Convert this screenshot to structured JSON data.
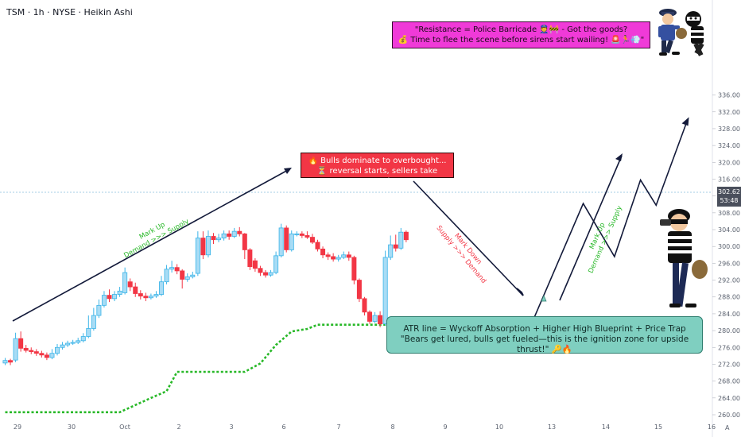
{
  "header": {
    "ticker": "TSM · 1h · NYSE · Heikin Ashi"
  },
  "price_tag": {
    "price": "302.62",
    "countdown": "53:48"
  },
  "callouts": {
    "resistance": {
      "line1": "\"Resistance = Police Barricade 👮🚧 - Got the goods?",
      "line2": "💰 Time to flee the scene before sirens start wailing! 🚨🏃💨\""
    },
    "bulls": {
      "line1": "🔥 Bulls dominate to overbought...",
      "line2": "⏳ reversal starts, sellers take control."
    },
    "atr": {
      "line1": "ATR line = Wyckoff Absorption + Higher High Blueprint + Price Trap",
      "line2": "\"Bears get lured, bulls get fueled—this is the ignition zone for upside thrust!\" 🔑🔥"
    }
  },
  "annotations": {
    "markup1": {
      "l1": "Mark Up",
      "l2": "Demand >>> Supply"
    },
    "markdown": {
      "l1": "Mark Down",
      "l2": "Supply >>> Demand"
    },
    "markup2": {
      "l1": "Mark Up",
      "l2": "Demand >>> Supply"
    }
  },
  "colors": {
    "up": "#3ab4e8",
    "up_fill": "#a8dcf5",
    "down": "#f23645",
    "atr": "#27b827",
    "arrow": "#131a3a",
    "callout_magenta": "#f03ad8",
    "callout_red": "#f23645",
    "callout_teal": "#7fcfc0"
  },
  "chart_data": {
    "type": "candlestick",
    "style": "Heikin Ashi",
    "ylim": [
      260,
      338
    ],
    "y_ticks": [
      260,
      264,
      268,
      272,
      276,
      280,
      284,
      288,
      292,
      296,
      300,
      304,
      308,
      312,
      316,
      320,
      324,
      328,
      332,
      336
    ],
    "y_tick_labels": [
      "260.00",
      "264.00",
      "268.00",
      "272.00",
      "276.00",
      "280.00",
      "284.00",
      "288.00",
      "292.00",
      "296.00",
      "300.00",
      "304.00",
      "308.00",
      "312.00",
      "316.00",
      "320.00",
      "324.00",
      "328.00",
      "332.00",
      "336.00"
    ],
    "x_labels": [
      "29",
      "30",
      "Oct",
      "2",
      "3",
      "6",
      "7",
      "8",
      "9",
      "10",
      "13",
      "14",
      "15",
      "16"
    ],
    "candles": [
      {
        "o": 272.3,
        "c": 272.9,
        "h": 273.5,
        "l": 271.8
      },
      {
        "o": 272.9,
        "c": 272.5,
        "h": 273.3,
        "l": 271.8
      },
      {
        "o": 273.0,
        "c": 278.1,
        "h": 279.5,
        "l": 272.5
      },
      {
        "o": 278.1,
        "c": 275.8,
        "h": 279.8,
        "l": 275.0
      },
      {
        "o": 275.8,
        "c": 275.3,
        "h": 276.6,
        "l": 274.8
      },
      {
        "o": 275.3,
        "c": 275.0,
        "h": 276.0,
        "l": 274.4
      },
      {
        "o": 275.0,
        "c": 274.6,
        "h": 275.6,
        "l": 274.0
      },
      {
        "o": 274.6,
        "c": 274.2,
        "h": 275.2,
        "l": 273.6
      },
      {
        "o": 274.2,
        "c": 273.6,
        "h": 274.8,
        "l": 273.0
      },
      {
        "o": 273.6,
        "c": 274.6,
        "h": 275.6,
        "l": 273.2
      },
      {
        "o": 274.6,
        "c": 276.0,
        "h": 276.8,
        "l": 274.1
      },
      {
        "o": 276.0,
        "c": 276.6,
        "h": 277.3,
        "l": 275.5
      },
      {
        "o": 276.6,
        "c": 277.0,
        "h": 277.6,
        "l": 276.1
      },
      {
        "o": 277.0,
        "c": 277.2,
        "h": 277.8,
        "l": 276.6
      },
      {
        "o": 277.2,
        "c": 277.6,
        "h": 278.3,
        "l": 276.8
      },
      {
        "o": 277.6,
        "c": 278.6,
        "h": 279.4,
        "l": 277.2
      },
      {
        "o": 278.6,
        "c": 280.5,
        "h": 283.6,
        "l": 278.2
      },
      {
        "o": 280.5,
        "c": 283.6,
        "h": 285.4,
        "l": 280.0
      },
      {
        "o": 283.6,
        "c": 286.0,
        "h": 287.4,
        "l": 283.0
      },
      {
        "o": 286.0,
        "c": 288.4,
        "h": 289.4,
        "l": 285.5
      },
      {
        "o": 288.4,
        "c": 287.6,
        "h": 289.8,
        "l": 286.8
      },
      {
        "o": 287.6,
        "c": 288.6,
        "h": 289.4,
        "l": 287.0
      },
      {
        "o": 288.6,
        "c": 289.4,
        "h": 290.4,
        "l": 288.0
      },
      {
        "o": 289.0,
        "c": 293.8,
        "h": 295.0,
        "l": 288.6
      },
      {
        "o": 291.6,
        "c": 290.4,
        "h": 292.4,
        "l": 289.4
      },
      {
        "o": 290.4,
        "c": 288.8,
        "h": 291.4,
        "l": 288.0
      },
      {
        "o": 288.8,
        "c": 288.2,
        "h": 289.6,
        "l": 287.4
      },
      {
        "o": 288.2,
        "c": 287.8,
        "h": 289.0,
        "l": 287.0
      },
      {
        "o": 287.8,
        "c": 288.2,
        "h": 288.8,
        "l": 287.4
      },
      {
        "o": 288.2,
        "c": 288.6,
        "h": 289.4,
        "l": 287.8
      },
      {
        "o": 288.6,
        "c": 291.6,
        "h": 293.0,
        "l": 288.2
      },
      {
        "o": 291.6,
        "c": 294.6,
        "h": 295.6,
        "l": 291.0
      },
      {
        "o": 294.6,
        "c": 295.0,
        "h": 296.6,
        "l": 293.8
      },
      {
        "o": 295.0,
        "c": 294.2,
        "h": 295.8,
        "l": 293.4
      },
      {
        "o": 294.2,
        "c": 292.2,
        "h": 294.6,
        "l": 290.0
      },
      {
        "o": 292.2,
        "c": 292.8,
        "h": 293.6,
        "l": 291.6
      },
      {
        "o": 292.8,
        "c": 293.2,
        "h": 294.0,
        "l": 292.4
      },
      {
        "o": 293.6,
        "c": 302.0,
        "h": 303.6,
        "l": 293.0
      },
      {
        "o": 302.0,
        "c": 298.0,
        "h": 303.6,
        "l": 297.0
      },
      {
        "o": 298.0,
        "c": 302.4,
        "h": 303.8,
        "l": 297.4
      },
      {
        "o": 302.4,
        "c": 301.6,
        "h": 303.2,
        "l": 300.6
      },
      {
        "o": 301.6,
        "c": 302.0,
        "h": 303.0,
        "l": 301.0
      },
      {
        "o": 302.0,
        "c": 303.0,
        "h": 303.8,
        "l": 301.4
      },
      {
        "o": 303.0,
        "c": 302.4,
        "h": 303.8,
        "l": 301.6
      },
      {
        "o": 302.4,
        "c": 303.6,
        "h": 304.4,
        "l": 302.0
      },
      {
        "o": 303.6,
        "c": 303.0,
        "h": 304.6,
        "l": 302.4
      },
      {
        "o": 303.0,
        "c": 299.2,
        "h": 303.2,
        "l": 297.0
      },
      {
        "o": 299.2,
        "c": 295.2,
        "h": 299.6,
        "l": 294.4
      },
      {
        "o": 296.6,
        "c": 294.8,
        "h": 297.2,
        "l": 294.0
      },
      {
        "o": 294.8,
        "c": 293.8,
        "h": 295.4,
        "l": 293.0
      },
      {
        "o": 293.8,
        "c": 293.2,
        "h": 294.4,
        "l": 292.6
      },
      {
        "o": 293.2,
        "c": 293.8,
        "h": 294.4,
        "l": 292.8
      },
      {
        "o": 293.8,
        "c": 297.8,
        "h": 298.8,
        "l": 293.4
      },
      {
        "o": 297.8,
        "c": 304.4,
        "h": 305.4,
        "l": 297.4
      },
      {
        "o": 304.4,
        "c": 299.2,
        "h": 305.0,
        "l": 298.6
      },
      {
        "o": 299.2,
        "c": 303.0,
        "h": 303.8,
        "l": 298.8
      },
      {
        "o": 303.0,
        "c": 303.0,
        "h": 303.6,
        "l": 302.4
      },
      {
        "o": 303.0,
        "c": 302.6,
        "h": 303.6,
        "l": 302.0
      },
      {
        "o": 302.6,
        "c": 302.2,
        "h": 303.6,
        "l": 301.8
      },
      {
        "o": 302.2,
        "c": 301.0,
        "h": 303.0,
        "l": 300.6
      },
      {
        "o": 301.0,
        "c": 299.4,
        "h": 301.6,
        "l": 298.8
      },
      {
        "o": 299.4,
        "c": 298.0,
        "h": 300.0,
        "l": 297.2
      },
      {
        "o": 298.0,
        "c": 297.6,
        "h": 298.6,
        "l": 296.8
      },
      {
        "o": 297.6,
        "c": 297.0,
        "h": 298.4,
        "l": 296.4
      },
      {
        "o": 297.0,
        "c": 297.4,
        "h": 298.0,
        "l": 296.4
      },
      {
        "o": 297.4,
        "c": 298.0,
        "h": 298.8,
        "l": 297.0
      },
      {
        "o": 298.0,
        "c": 297.4,
        "h": 298.8,
        "l": 296.6
      },
      {
        "o": 297.4,
        "c": 292.0,
        "h": 297.8,
        "l": 291.0
      },
      {
        "o": 292.0,
        "c": 287.6,
        "h": 292.4,
        "l": 286.8
      },
      {
        "o": 287.6,
        "c": 284.4,
        "h": 288.0,
        "l": 283.6
      },
      {
        "o": 284.4,
        "c": 282.2,
        "h": 284.8,
        "l": 281.6
      },
      {
        "o": 282.2,
        "c": 283.6,
        "h": 284.4,
        "l": 281.8
      },
      {
        "o": 283.6,
        "c": 281.6,
        "h": 284.6,
        "l": 280.8
      },
      {
        "o": 281.6,
        "c": 297.4,
        "h": 299.0,
        "l": 281.2
      },
      {
        "o": 297.4,
        "c": 300.4,
        "h": 302.6,
        "l": 296.8
      },
      {
        "o": 300.4,
        "c": 299.6,
        "h": 302.8,
        "l": 298.8
      },
      {
        "o": 299.6,
        "c": 303.4,
        "h": 304.4,
        "l": 299.2
      },
      {
        "o": 303.4,
        "c": 301.6,
        "h": 303.8,
        "l": 301.0
      }
    ],
    "atr_line": [
      {
        "x": 0,
        "y": 260.6
      },
      {
        "x": 22,
        "y": 260.6
      },
      {
        "x": 28,
        "y": 264.0
      },
      {
        "x": 31,
        "y": 265.6
      },
      {
        "x": 33,
        "y": 270.2
      },
      {
        "x": 46,
        "y": 270.2
      },
      {
        "x": 49,
        "y": 272.2
      },
      {
        "x": 52,
        "y": 276.6
      },
      {
        "x": 55,
        "y": 279.8
      },
      {
        "x": 58,
        "y": 280.4
      },
      {
        "x": 60,
        "y": 281.4
      },
      {
        "x": 98,
        "y": 281.4
      }
    ],
    "projection": [
      {
        "x": 101,
        "y": 281.4
      },
      {
        "x": 111,
        "y": 310.2
      },
      {
        "x": 117,
        "y": 297.6
      },
      {
        "x": 122,
        "y": 315.8
      },
      {
        "x": 125,
        "y": 309.8
      },
      {
        "x": 131,
        "y": 330.0
      }
    ]
  }
}
